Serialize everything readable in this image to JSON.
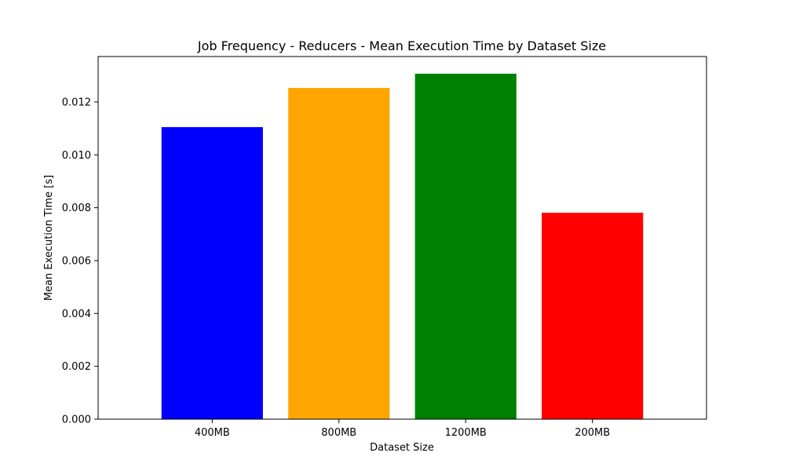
{
  "chart_data": {
    "type": "bar",
    "title": "Job Frequency - Reducers - Mean Execution Time by Dataset Size",
    "xlabel": "Dataset Size",
    "ylabel": "Mean Execution Time [s]",
    "categories": [
      "400MB",
      "800MB",
      "1200MB",
      "200MB"
    ],
    "values": [
      0.01105,
      0.01253,
      0.01307,
      0.00781
    ],
    "colors": [
      "#0000ff",
      "#ffa500",
      "#008000",
      "#ff0000"
    ],
    "ylim": [
      0,
      0.01372
    ],
    "yticks": [
      0.0,
      0.002,
      0.004,
      0.006,
      0.008,
      0.01,
      0.012
    ],
    "ytick_labels": [
      "0.000",
      "0.002",
      "0.004",
      "0.006",
      "0.008",
      "0.010",
      "0.012"
    ],
    "grid": false,
    "legend": "none"
  }
}
